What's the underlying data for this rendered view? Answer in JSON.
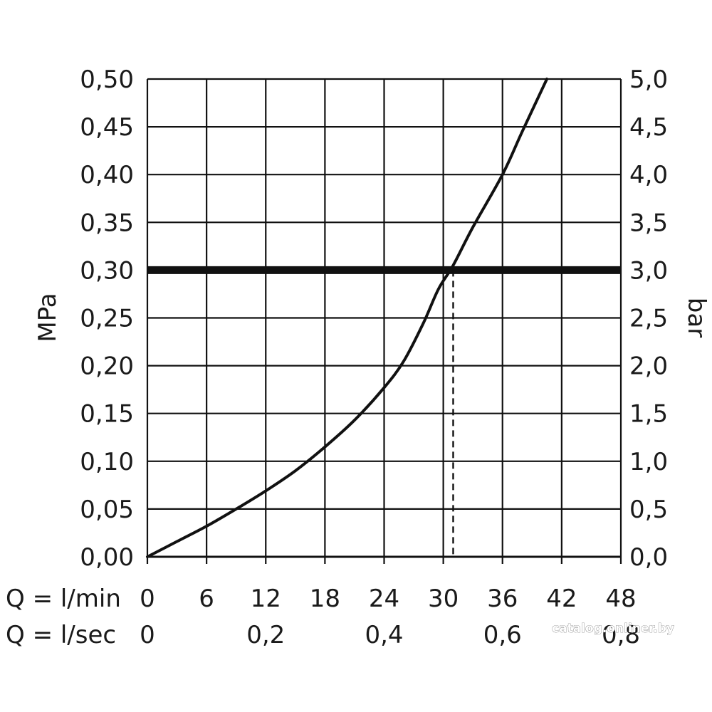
{
  "chart_data": {
    "type": "line",
    "title": "",
    "grid": true,
    "y_left": {
      "label": "MPa",
      "range": [
        0,
        0.5
      ],
      "ticks": [
        "0,00",
        "0,05",
        "0,10",
        "0,15",
        "0,20",
        "0,25",
        "0,30",
        "0,35",
        "0,40",
        "0,45",
        "0,50"
      ]
    },
    "y_right": {
      "label": "bar",
      "range": [
        0,
        5
      ],
      "ticks": [
        "0,0",
        "0,5",
        "1,0",
        "1,5",
        "2,0",
        "2,5",
        "3,0",
        "3,5",
        "4,0",
        "4,5",
        "5,0"
      ]
    },
    "x_primary": {
      "label": "Q = l/min",
      "range": [
        0,
        48
      ],
      "ticks": [
        "0",
        "6",
        "12",
        "18",
        "24",
        "30",
        "36",
        "42",
        "48"
      ],
      "tick_values": [
        0,
        6,
        12,
        18,
        24,
        30,
        36,
        42,
        48
      ]
    },
    "x_secondary": {
      "label": "Q = l/sec",
      "ticks": [
        "0",
        "0,2",
        "0,4",
        "0,6",
        "0,8"
      ],
      "tick_values_lmin": [
        0,
        12,
        24,
        36,
        48
      ]
    },
    "series": [
      {
        "x": [
          0,
          3,
          6,
          9,
          12,
          15,
          18,
          21,
          24,
          26,
          28,
          29.5,
          31,
          33,
          36,
          38,
          40.5
        ],
        "y": [
          0,
          0.016,
          0.032,
          0.05,
          0.069,
          0.09,
          0.115,
          0.143,
          0.177,
          0.205,
          0.245,
          0.28,
          0.305,
          0.345,
          0.4,
          0.445,
          0.5
        ]
      }
    ],
    "reference_line": {
      "y": 0.3
    },
    "operating_point": {
      "x": 31,
      "y": 0.3
    }
  },
  "watermark": "catalog.onliner.by"
}
